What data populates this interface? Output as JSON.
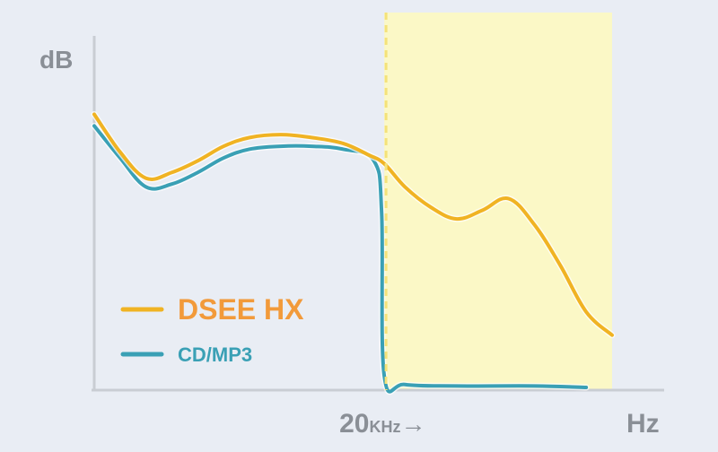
{
  "chart_data": {
    "type": "line",
    "title": "",
    "ylabel": "dB",
    "xlabel": "Hz",
    "x_marker": {
      "label_main": "20",
      "label_unit": "KHz",
      "label_arrow": "→",
      "x": 0.56,
      "style": "dashed",
      "color": "#f4e27a"
    },
    "highlight_region": {
      "x_start": 0.56,
      "x_end": 1.0,
      "color": "#fbf8c6"
    },
    "xlim": [
      0,
      1
    ],
    "ylim": [
      0,
      1
    ],
    "grid": false,
    "legend_position": "bottom-left",
    "series": [
      {
        "name": "DSEE HX",
        "color": "#f0b323",
        "label_color": "#f29a3a",
        "points": [
          [
            0.0,
            0.94
          ],
          [
            0.05,
            0.81
          ],
          [
            0.1,
            0.72
          ],
          [
            0.15,
            0.74
          ],
          [
            0.2,
            0.78
          ],
          [
            0.25,
            0.83
          ],
          [
            0.3,
            0.86
          ],
          [
            0.36,
            0.87
          ],
          [
            0.42,
            0.86
          ],
          [
            0.48,
            0.84
          ],
          [
            0.53,
            0.8
          ],
          [
            0.56,
            0.77
          ],
          [
            0.6,
            0.69
          ],
          [
            0.65,
            0.62
          ],
          [
            0.7,
            0.58
          ],
          [
            0.75,
            0.61
          ],
          [
            0.8,
            0.65
          ],
          [
            0.85,
            0.56
          ],
          [
            0.9,
            0.42
          ],
          [
            0.95,
            0.26
          ],
          [
            1.0,
            0.18
          ]
        ]
      },
      {
        "name": "CD/MP3",
        "color": "#3aa0b5",
        "label_color": "#3aa0b5",
        "points": [
          [
            0.0,
            0.9
          ],
          [
            0.05,
            0.79
          ],
          [
            0.1,
            0.69
          ],
          [
            0.15,
            0.7
          ],
          [
            0.2,
            0.74
          ],
          [
            0.25,
            0.79
          ],
          [
            0.3,
            0.82
          ],
          [
            0.36,
            0.83
          ],
          [
            0.42,
            0.83
          ],
          [
            0.48,
            0.82
          ],
          [
            0.54,
            0.78
          ],
          [
            0.555,
            0.6
          ],
          [
            0.56,
            0.04
          ],
          [
            0.6,
            0.01
          ],
          [
            0.7,
            0.005
          ],
          [
            0.85,
            0.005
          ],
          [
            0.95,
            0.0
          ]
        ]
      }
    ]
  }
}
